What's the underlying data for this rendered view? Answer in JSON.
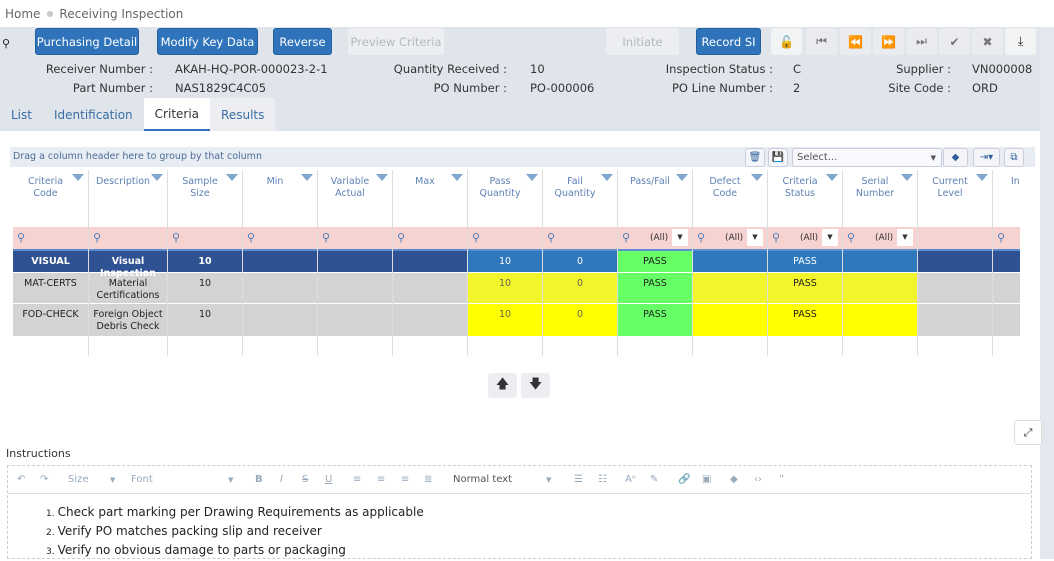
{
  "breadcrumb": {
    "home": "Home",
    "current": "Receiving Inspection"
  },
  "toolbar": {
    "purchasing_detail": "Purchasing Detail",
    "modify_key_data": "Modify Key Data",
    "reverse": "Reverse",
    "preview_criteria": "Preview Criteria",
    "initiate": "Initiate",
    "record_si": "Record SI"
  },
  "fields": {
    "receiver_number": {
      "label": "Receiver Number :",
      "value": "AKAH-HQ-POR-000023-2-1"
    },
    "part_number": {
      "label": "Part Number :",
      "value": "NAS1829C4C05"
    },
    "quantity_received": {
      "label": "Quantity Received :",
      "value": "10"
    },
    "po_number": {
      "label": "PO Number :",
      "value": "PO-000006"
    },
    "inspection_status": {
      "label": "Inspection Status :",
      "value": "C"
    },
    "po_line_number": {
      "label": "PO Line Number :",
      "value": "2"
    },
    "supplier": {
      "label": "Supplier :",
      "value": "VN000008"
    },
    "site_code": {
      "label": "Site Code :",
      "value": "ORD"
    }
  },
  "tabs": [
    "List",
    "Identification",
    "Criteria",
    "Results"
  ],
  "active_tab": "Criteria",
  "grid": {
    "group_hint": "Drag a column header here to group by that column",
    "layout_select_placeholder": "Select...",
    "filter_all": "(All)",
    "columns": [
      "Criteria Code",
      "Description",
      "Sample Size",
      "Min",
      "Variable Actual",
      "Max",
      "Pass Quantity",
      "Fail Quantity",
      "Pass/Fail",
      "Defect Code",
      "Criteria Status",
      "Serial Number",
      "Current Level",
      "Insp L"
    ],
    "rows": [
      [
        "VISUAL",
        "Visual Inspection",
        "10",
        "",
        "",
        "",
        "10",
        "0",
        "PASS",
        "",
        "PASS",
        "",
        "",
        ""
      ],
      [
        "MAT-CERTS",
        "Material Certifications",
        "10",
        "",
        "",
        "",
        "10",
        "0",
        "PASS",
        "",
        "PASS",
        "",
        "",
        ""
      ],
      [
        "FOD-CHECK",
        "Foreign Object Debris Check",
        "10",
        "",
        "",
        "",
        "10",
        "0",
        "PASS",
        "",
        "PASS",
        "",
        "",
        ""
      ]
    ],
    "colors": {
      "selected_dark": "#2f5293",
      "selected_light": "#2e78bb",
      "yellow_soft": "#f2f52c",
      "yellow": "#ffff00",
      "pass_green": "#66ff66",
      "gray": "#d3d3d3",
      "filter_pink": "#f6d3d0"
    }
  },
  "instructions": {
    "label": "Instructions",
    "size_placeholder": "Size",
    "font_placeholder": "Font",
    "block_format": "Normal text",
    "items": [
      "Check part marking per Drawing Requirements as applicable",
      "Verify PO matches packing slip and receiver",
      "Verify no obvious damage to parts or packaging"
    ]
  }
}
